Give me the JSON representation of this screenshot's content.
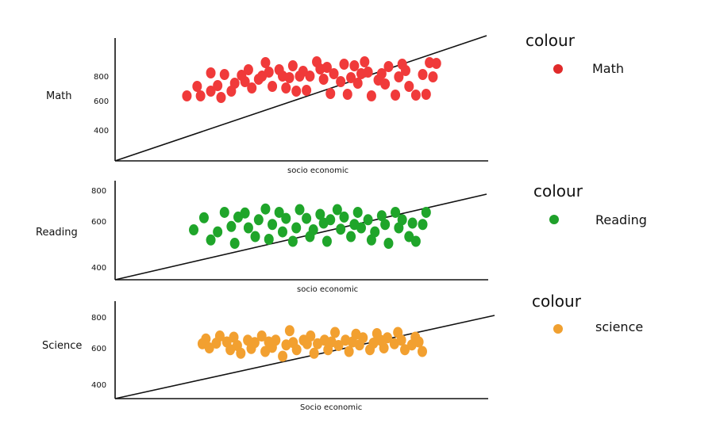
{
  "chart_data": [
    {
      "type": "scatter",
      "ylabel": "Math",
      "xlabel": "socio economic",
      "yticks": [
        "800",
        "600",
        "400"
      ],
      "legend": {
        "title": "colour",
        "label": "Math",
        "color": "#e02a2a"
      },
      "color": "#f03a3a",
      "points": [
        [
          0.21,
          0.39
        ],
        [
          0.24,
          0.51
        ],
        [
          0.25,
          0.39
        ],
        [
          0.28,
          0.45
        ],
        [
          0.28,
          0.68
        ],
        [
          0.3,
          0.52
        ],
        [
          0.31,
          0.37
        ],
        [
          0.32,
          0.66
        ],
        [
          0.34,
          0.45
        ],
        [
          0.35,
          0.55
        ],
        [
          0.37,
          0.65
        ],
        [
          0.38,
          0.57
        ],
        [
          0.39,
          0.72
        ],
        [
          0.4,
          0.49
        ],
        [
          0.42,
          0.6
        ],
        [
          0.43,
          0.64
        ],
        [
          0.44,
          0.81
        ],
        [
          0.45,
          0.69
        ],
        [
          0.46,
          0.51
        ],
        [
          0.48,
          0.72
        ],
        [
          0.49,
          0.64
        ],
        [
          0.5,
          0.49
        ],
        [
          0.51,
          0.62
        ],
        [
          0.52,
          0.77
        ],
        [
          0.53,
          0.45
        ],
        [
          0.54,
          0.64
        ],
        [
          0.55,
          0.7
        ],
        [
          0.56,
          0.46
        ],
        [
          0.57,
          0.64
        ],
        [
          0.59,
          0.82
        ],
        [
          0.6,
          0.73
        ],
        [
          0.61,
          0.6
        ],
        [
          0.62,
          0.75
        ],
        [
          0.63,
          0.42
        ],
        [
          0.64,
          0.67
        ],
        [
          0.66,
          0.57
        ],
        [
          0.67,
          0.79
        ],
        [
          0.68,
          0.41
        ],
        [
          0.69,
          0.62
        ],
        [
          0.7,
          0.77
        ],
        [
          0.71,
          0.55
        ],
        [
          0.72,
          0.67
        ],
        [
          0.73,
          0.82
        ],
        [
          0.74,
          0.69
        ],
        [
          0.75,
          0.39
        ],
        [
          0.77,
          0.59
        ],
        [
          0.78,
          0.67
        ],
        [
          0.79,
          0.54
        ],
        [
          0.8,
          0.76
        ],
        [
          0.82,
          0.4
        ],
        [
          0.83,
          0.63
        ],
        [
          0.84,
          0.79
        ],
        [
          0.85,
          0.71
        ],
        [
          0.86,
          0.51
        ],
        [
          0.88,
          0.4
        ],
        [
          0.9,
          0.66
        ],
        [
          0.91,
          0.41
        ],
        [
          0.92,
          0.81
        ],
        [
          0.93,
          0.63
        ],
        [
          0.94,
          0.8
        ]
      ],
      "trend": [
        [
          0.0,
          0.0
        ],
        [
          1.0,
          1.03
        ]
      ]
    },
    {
      "type": "scatter",
      "ylabel": "Reading",
      "xlabel": "socio economic",
      "yticks": [
        "800",
        "600",
        "400"
      ],
      "legend": {
        "title": "colour",
        "label": "Reading",
        "color": "#1fa02a"
      },
      "color": "#1fa52a",
      "points": [
        [
          0.23,
          0.47
        ],
        [
          0.26,
          0.65
        ],
        [
          0.28,
          0.32
        ],
        [
          0.3,
          0.44
        ],
        [
          0.32,
          0.73
        ],
        [
          0.34,
          0.52
        ],
        [
          0.35,
          0.27
        ],
        [
          0.36,
          0.66
        ],
        [
          0.38,
          0.72
        ],
        [
          0.39,
          0.5
        ],
        [
          0.41,
          0.37
        ],
        [
          0.42,
          0.62
        ],
        [
          0.44,
          0.78
        ],
        [
          0.45,
          0.33
        ],
        [
          0.46,
          0.55
        ],
        [
          0.48,
          0.73
        ],
        [
          0.49,
          0.44
        ],
        [
          0.5,
          0.64
        ],
        [
          0.52,
          0.3
        ],
        [
          0.53,
          0.5
        ],
        [
          0.54,
          0.77
        ],
        [
          0.56,
          0.64
        ],
        [
          0.57,
          0.37
        ],
        [
          0.58,
          0.47
        ],
        [
          0.6,
          0.7
        ],
        [
          0.61,
          0.57
        ],
        [
          0.62,
          0.3
        ],
        [
          0.63,
          0.62
        ],
        [
          0.65,
          0.77
        ],
        [
          0.66,
          0.48
        ],
        [
          0.67,
          0.66
        ],
        [
          0.69,
          0.37
        ],
        [
          0.7,
          0.55
        ],
        [
          0.71,
          0.73
        ],
        [
          0.72,
          0.5
        ],
        [
          0.74,
          0.62
        ],
        [
          0.75,
          0.32
        ],
        [
          0.76,
          0.44
        ],
        [
          0.78,
          0.68
        ],
        [
          0.79,
          0.55
        ],
        [
          0.8,
          0.27
        ],
        [
          0.82,
          0.73
        ],
        [
          0.83,
          0.5
        ],
        [
          0.84,
          0.62
        ],
        [
          0.86,
          0.37
        ],
        [
          0.87,
          0.57
        ],
        [
          0.88,
          0.3
        ],
        [
          0.9,
          0.55
        ],
        [
          0.91,
          0.73
        ]
      ],
      "trend": [
        [
          0.0,
          0.0
        ],
        [
          1.0,
          0.85
        ]
      ]
    },
    {
      "type": "scatter",
      "ylabel": "Science",
      "xlabel": "Socio economic",
      "yticks": [
        "800",
        "600",
        "400"
      ],
      "legend": {
        "title": "colour",
        "label": "science",
        "color": "#f0a030"
      },
      "color": "#f2a030",
      "points": [
        [
          0.25,
          0.55
        ],
        [
          0.26,
          0.63
        ],
        [
          0.27,
          0.48
        ],
        [
          0.29,
          0.56
        ],
        [
          0.3,
          0.68
        ],
        [
          0.32,
          0.58
        ],
        [
          0.33,
          0.45
        ],
        [
          0.34,
          0.66
        ],
        [
          0.35,
          0.52
        ],
        [
          0.36,
          0.39
        ],
        [
          0.38,
          0.61
        ],
        [
          0.39,
          0.47
        ],
        [
          0.4,
          0.57
        ],
        [
          0.42,
          0.68
        ],
        [
          0.43,
          0.42
        ],
        [
          0.44,
          0.58
        ],
        [
          0.45,
          0.49
        ],
        [
          0.46,
          0.61
        ],
        [
          0.48,
          0.34
        ],
        [
          0.49,
          0.53
        ],
        [
          0.5,
          0.77
        ],
        [
          0.51,
          0.57
        ],
        [
          0.52,
          0.45
        ],
        [
          0.54,
          0.61
        ],
        [
          0.55,
          0.55
        ],
        [
          0.56,
          0.68
        ],
        [
          0.57,
          0.39
        ],
        [
          0.58,
          0.55
        ],
        [
          0.6,
          0.61
        ],
        [
          0.61,
          0.45
        ],
        [
          0.62,
          0.58
        ],
        [
          0.63,
          0.74
        ],
        [
          0.64,
          0.52
        ],
        [
          0.66,
          0.61
        ],
        [
          0.67,
          0.42
        ],
        [
          0.68,
          0.58
        ],
        [
          0.69,
          0.71
        ],
        [
          0.7,
          0.53
        ],
        [
          0.71,
          0.65
        ],
        [
          0.73,
          0.45
        ],
        [
          0.74,
          0.56
        ],
        [
          0.75,
          0.72
        ],
        [
          0.76,
          0.61
        ],
        [
          0.77,
          0.48
        ],
        [
          0.78,
          0.65
        ],
        [
          0.8,
          0.55
        ],
        [
          0.81,
          0.74
        ],
        [
          0.82,
          0.61
        ],
        [
          0.83,
          0.45
        ],
        [
          0.85,
          0.53
        ],
        [
          0.86,
          0.66
        ],
        [
          0.87,
          0.58
        ],
        [
          0.88,
          0.42
        ]
      ],
      "trend": [
        [
          0.0,
          0.0
        ],
        [
          1.0,
          1.0
        ]
      ]
    }
  ],
  "colors": {
    "axis": "#111111",
    "background": "#ffffff"
  }
}
